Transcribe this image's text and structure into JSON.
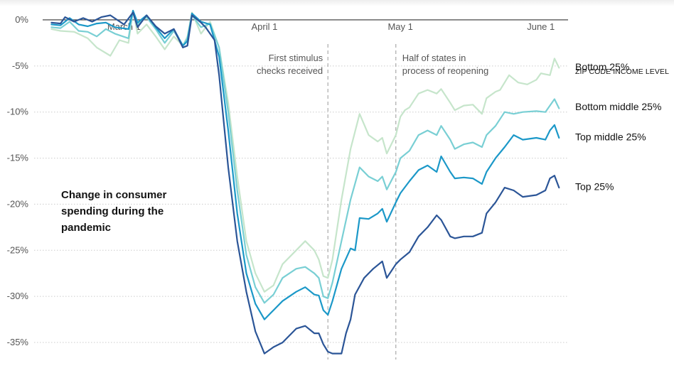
{
  "chart_data": {
    "type": "line",
    "title": "Change in consumer spending during the pandemic",
    "title_lines": [
      "Change in consumer",
      "spending during the",
      "pandemic"
    ],
    "x_ticks": [
      {
        "date": "2020-03-01",
        "label": "March 1"
      },
      {
        "date": "2020-04-01",
        "label": "April 1"
      },
      {
        "date": "2020-05-01",
        "label": "May 1"
      },
      {
        "date": "2020-06-01",
        "label": "June 1"
      }
    ],
    "y_ticks": [
      {
        "value": 0,
        "label": "0%"
      },
      {
        "value": -5,
        "label": "-5%"
      },
      {
        "value": -10,
        "label": "-10%"
      },
      {
        "value": -15,
        "label": "-15%"
      },
      {
        "value": -20,
        "label": "-20%"
      },
      {
        "value": -25,
        "label": "-25%"
      },
      {
        "value": -30,
        "label": "-30%"
      },
      {
        "value": -35,
        "label": "-35%"
      }
    ],
    "xlim": [
      "2020-02-13",
      "2020-06-07"
    ],
    "ylim": [
      -37,
      2
    ],
    "annotations": [
      {
        "date": "2020-04-15",
        "lines": [
          "First stimulus",
          "checks received"
        ],
        "side": "left"
      },
      {
        "date": "2020-04-30",
        "lines": [
          "Half of states in",
          "process of reopening"
        ],
        "side": "right"
      }
    ],
    "legend_title": "ZIP CODE INCOME LEVEL",
    "legend_position": "right",
    "series": [
      {
        "name": "Bottom 25%",
        "color": "#c6e5cb",
        "points": [
          [
            "2020-02-14",
            -1.0
          ],
          [
            "2020-02-16",
            -1.2
          ],
          [
            "2020-02-19",
            -1.3
          ],
          [
            "2020-02-22",
            -2.0
          ],
          [
            "2020-02-24",
            -3.0
          ],
          [
            "2020-02-27",
            -3.9
          ],
          [
            "2020-02-29",
            -2.2
          ],
          [
            "2020-03-02",
            -2.5
          ],
          [
            "2020-03-03",
            1.0
          ],
          [
            "2020-03-04",
            -1.5
          ],
          [
            "2020-03-06",
            -0.5
          ],
          [
            "2020-03-08",
            -1.8
          ],
          [
            "2020-03-10",
            -3.2
          ],
          [
            "2020-03-12",
            -1.8
          ],
          [
            "2020-03-14",
            -2.8
          ],
          [
            "2020-03-15",
            -1.8
          ],
          [
            "2020-03-16",
            0.8
          ],
          [
            "2020-03-18",
            -1.5
          ],
          [
            "2020-03-20",
            -0.2
          ],
          [
            "2020-03-22",
            -3.0
          ],
          [
            "2020-03-24",
            -9.0
          ],
          [
            "2020-03-26",
            -17.0
          ],
          [
            "2020-03-28",
            -24.0
          ],
          [
            "2020-03-30",
            -27.5
          ],
          [
            "2020-04-01",
            -29.5
          ],
          [
            "2020-04-03",
            -28.8
          ],
          [
            "2020-04-05",
            -26.5
          ],
          [
            "2020-04-08",
            -25.0
          ],
          [
            "2020-04-10",
            -24.0
          ],
          [
            "2020-04-12",
            -25.0
          ],
          [
            "2020-04-13",
            -26.0
          ],
          [
            "2020-04-14",
            -27.8
          ],
          [
            "2020-04-15",
            -28.0
          ],
          [
            "2020-04-16",
            -26.0
          ],
          [
            "2020-04-18",
            -19.5
          ],
          [
            "2020-04-20",
            -14.0
          ],
          [
            "2020-04-22",
            -10.2
          ],
          [
            "2020-04-24",
            -12.5
          ],
          [
            "2020-04-26",
            -13.2
          ],
          [
            "2020-04-27",
            -12.8
          ],
          [
            "2020-04-28",
            -14.5
          ],
          [
            "2020-04-30",
            -12.5
          ],
          [
            "2020-05-01",
            -10.5
          ],
          [
            "2020-05-02",
            -9.8
          ],
          [
            "2020-05-03",
            -9.5
          ],
          [
            "2020-05-05",
            -8.0
          ],
          [
            "2020-05-07",
            -7.6
          ],
          [
            "2020-05-09",
            -8.0
          ],
          [
            "2020-05-10",
            -7.5
          ],
          [
            "2020-05-12",
            -9.0
          ],
          [
            "2020-05-13",
            -9.8
          ],
          [
            "2020-05-15",
            -9.3
          ],
          [
            "2020-05-17",
            -9.2
          ],
          [
            "2020-05-19",
            -10.2
          ],
          [
            "2020-05-20",
            -8.5
          ],
          [
            "2020-05-22",
            -7.8
          ],
          [
            "2020-05-23",
            -7.6
          ],
          [
            "2020-05-25",
            -6.0
          ],
          [
            "2020-05-27",
            -6.8
          ],
          [
            "2020-05-29",
            -7.0
          ],
          [
            "2020-05-31",
            -6.5
          ],
          [
            "2020-06-01",
            -5.8
          ],
          [
            "2020-06-03",
            -6.0
          ],
          [
            "2020-06-04",
            -4.2
          ],
          [
            "2020-06-05",
            -5.2
          ]
        ]
      },
      {
        "name": "Bottom middle 25%",
        "color": "#79cfd4",
        "points": [
          [
            "2020-02-14",
            -0.8
          ],
          [
            "2020-02-16",
            -0.9
          ],
          [
            "2020-02-18",
            -0.2
          ],
          [
            "2020-02-20",
            -1.2
          ],
          [
            "2020-02-22",
            -1.3
          ],
          [
            "2020-02-24",
            -1.8
          ],
          [
            "2020-02-26",
            -1.0
          ],
          [
            "2020-02-28",
            -1.5
          ],
          [
            "2020-03-02",
            -2.0
          ],
          [
            "2020-03-03",
            1.0
          ],
          [
            "2020-03-04",
            -0.5
          ],
          [
            "2020-03-06",
            0.3
          ],
          [
            "2020-03-08",
            -1.0
          ],
          [
            "2020-03-10",
            -2.5
          ],
          [
            "2020-03-12",
            -1.2
          ],
          [
            "2020-03-14",
            -2.8
          ],
          [
            "2020-03-15",
            -2.0
          ],
          [
            "2020-03-16",
            0.5
          ],
          [
            "2020-03-18",
            -0.8
          ],
          [
            "2020-03-20",
            -0.4
          ],
          [
            "2020-03-22",
            -3.0
          ],
          [
            "2020-03-24",
            -10.0
          ],
          [
            "2020-03-26",
            -18.5
          ],
          [
            "2020-03-28",
            -25.5
          ],
          [
            "2020-03-30",
            -29.0
          ],
          [
            "2020-04-01",
            -30.7
          ],
          [
            "2020-04-03",
            -29.8
          ],
          [
            "2020-04-05",
            -28.0
          ],
          [
            "2020-04-08",
            -27.0
          ],
          [
            "2020-04-10",
            -26.8
          ],
          [
            "2020-04-12",
            -27.5
          ],
          [
            "2020-04-13",
            -28.0
          ],
          [
            "2020-04-14",
            -30.0
          ],
          [
            "2020-04-15",
            -30.2
          ],
          [
            "2020-04-16",
            -28.5
          ],
          [
            "2020-04-18",
            -24.0
          ],
          [
            "2020-04-20",
            -19.5
          ],
          [
            "2020-04-22",
            -16.0
          ],
          [
            "2020-04-24",
            -17.0
          ],
          [
            "2020-04-26",
            -17.5
          ],
          [
            "2020-04-27",
            -17.0
          ],
          [
            "2020-04-28",
            -18.4
          ],
          [
            "2020-04-30",
            -16.5
          ],
          [
            "2020-05-01",
            -15.0
          ],
          [
            "2020-05-03",
            -14.2
          ],
          [
            "2020-05-05",
            -12.5
          ],
          [
            "2020-05-07",
            -12.0
          ],
          [
            "2020-05-09",
            -12.5
          ],
          [
            "2020-05-10",
            -11.5
          ],
          [
            "2020-05-12",
            -13.0
          ],
          [
            "2020-05-13",
            -14.0
          ],
          [
            "2020-05-15",
            -13.5
          ],
          [
            "2020-05-17",
            -13.3
          ],
          [
            "2020-05-19",
            -13.8
          ],
          [
            "2020-05-20",
            -12.5
          ],
          [
            "2020-05-22",
            -11.5
          ],
          [
            "2020-05-24",
            -10.0
          ],
          [
            "2020-05-26",
            -10.2
          ],
          [
            "2020-05-28",
            -10.0
          ],
          [
            "2020-05-31",
            -9.9
          ],
          [
            "2020-06-02",
            -10.0
          ],
          [
            "2020-06-04",
            -8.6
          ],
          [
            "2020-06-05",
            -9.6
          ]
        ]
      },
      {
        "name": "Top middle 25%",
        "color": "#1b98c8",
        "points": [
          [
            "2020-02-14",
            -0.5
          ],
          [
            "2020-02-16",
            -0.6
          ],
          [
            "2020-02-18",
            0.2
          ],
          [
            "2020-02-20",
            -0.5
          ],
          [
            "2020-02-22",
            -0.7
          ],
          [
            "2020-02-24",
            -0.4
          ],
          [
            "2020-02-26",
            -0.3
          ],
          [
            "2020-02-28",
            -0.8
          ],
          [
            "2020-03-02",
            -1.0
          ],
          [
            "2020-03-03",
            1.0
          ],
          [
            "2020-03-04",
            -0.3
          ],
          [
            "2020-03-06",
            0.5
          ],
          [
            "2020-03-08",
            -0.8
          ],
          [
            "2020-03-10",
            -2.0
          ],
          [
            "2020-03-12",
            -1.0
          ],
          [
            "2020-03-14",
            -2.8
          ],
          [
            "2020-03-15",
            -2.3
          ],
          [
            "2020-03-16",
            0.7
          ],
          [
            "2020-03-18",
            -0.2
          ],
          [
            "2020-03-20",
            -0.5
          ],
          [
            "2020-03-22",
            -4.0
          ],
          [
            "2020-03-24",
            -12.0
          ],
          [
            "2020-03-26",
            -21.0
          ],
          [
            "2020-03-28",
            -27.5
          ],
          [
            "2020-03-30",
            -30.8
          ],
          [
            "2020-04-01",
            -32.5
          ],
          [
            "2020-04-03",
            -31.5
          ],
          [
            "2020-04-05",
            -30.5
          ],
          [
            "2020-04-08",
            -29.5
          ],
          [
            "2020-04-10",
            -29.0
          ],
          [
            "2020-04-12",
            -29.8
          ],
          [
            "2020-04-13",
            -29.9
          ],
          [
            "2020-04-14",
            -31.5
          ],
          [
            "2020-04-15",
            -32.0
          ],
          [
            "2020-04-16",
            -30.5
          ],
          [
            "2020-04-18",
            -27.0
          ],
          [
            "2020-04-20",
            -24.8
          ],
          [
            "2020-04-21",
            -25.0
          ],
          [
            "2020-04-22",
            -21.5
          ],
          [
            "2020-04-24",
            -21.6
          ],
          [
            "2020-04-26",
            -21.0
          ],
          [
            "2020-04-27",
            -20.5
          ],
          [
            "2020-04-28",
            -21.9
          ],
          [
            "2020-04-30",
            -19.8
          ],
          [
            "2020-05-01",
            -18.8
          ],
          [
            "2020-05-03",
            -17.5
          ],
          [
            "2020-05-05",
            -16.3
          ],
          [
            "2020-05-07",
            -15.8
          ],
          [
            "2020-05-09",
            -16.5
          ],
          [
            "2020-05-10",
            -14.8
          ],
          [
            "2020-05-12",
            -16.5
          ],
          [
            "2020-05-13",
            -17.2
          ],
          [
            "2020-05-15",
            -17.1
          ],
          [
            "2020-05-17",
            -17.2
          ],
          [
            "2020-05-19",
            -17.8
          ],
          [
            "2020-05-20",
            -16.5
          ],
          [
            "2020-05-22",
            -15.0
          ],
          [
            "2020-05-24",
            -13.8
          ],
          [
            "2020-05-26",
            -12.5
          ],
          [
            "2020-05-28",
            -13.0
          ],
          [
            "2020-05-31",
            -12.8
          ],
          [
            "2020-06-02",
            -13.0
          ],
          [
            "2020-06-03",
            -12.0
          ],
          [
            "2020-06-04",
            -11.4
          ],
          [
            "2020-06-05",
            -12.8
          ]
        ]
      },
      {
        "name": "Top 25%",
        "color": "#2b5597",
        "points": [
          [
            "2020-02-14",
            -0.3
          ],
          [
            "2020-02-16",
            -0.4
          ],
          [
            "2020-02-17",
            0.3
          ],
          [
            "2020-02-19",
            -0.2
          ],
          [
            "2020-02-21",
            0.2
          ],
          [
            "2020-02-23",
            -0.2
          ],
          [
            "2020-02-25",
            0.3
          ],
          [
            "2020-02-27",
            0.5
          ],
          [
            "2020-03-01",
            -0.5
          ],
          [
            "2020-03-03",
            0.8
          ],
          [
            "2020-03-04",
            -0.8
          ],
          [
            "2020-03-06",
            0.5
          ],
          [
            "2020-03-08",
            -0.7
          ],
          [
            "2020-03-10",
            -1.5
          ],
          [
            "2020-03-12",
            -1.0
          ],
          [
            "2020-03-14",
            -3.0
          ],
          [
            "2020-03-15",
            -2.8
          ],
          [
            "2020-03-16",
            0.5
          ],
          [
            "2020-03-18",
            -0.3
          ],
          [
            "2020-03-19",
            -0.8
          ],
          [
            "2020-03-21",
            -2.2
          ],
          [
            "2020-03-22",
            -6.0
          ],
          [
            "2020-03-24",
            -16.0
          ],
          [
            "2020-03-26",
            -24.0
          ],
          [
            "2020-03-28",
            -29.5
          ],
          [
            "2020-03-30",
            -33.8
          ],
          [
            "2020-04-01",
            -36.2
          ],
          [
            "2020-04-03",
            -35.5
          ],
          [
            "2020-04-05",
            -35.0
          ],
          [
            "2020-04-08",
            -33.5
          ],
          [
            "2020-04-10",
            -33.2
          ],
          [
            "2020-04-12",
            -34.0
          ],
          [
            "2020-04-13",
            -34.0
          ],
          [
            "2020-04-14",
            -35.2
          ],
          [
            "2020-04-15",
            -36.0
          ],
          [
            "2020-04-16",
            -36.2
          ],
          [
            "2020-04-18",
            -36.2
          ],
          [
            "2020-04-19",
            -34.0
          ],
          [
            "2020-04-20",
            -32.5
          ],
          [
            "2020-04-21",
            -29.8
          ],
          [
            "2020-04-23",
            -28.0
          ],
          [
            "2020-04-25",
            -27.0
          ],
          [
            "2020-04-27",
            -26.2
          ],
          [
            "2020-04-28",
            -28.0
          ],
          [
            "2020-04-30",
            -26.5
          ],
          [
            "2020-05-01",
            -26.0
          ],
          [
            "2020-05-03",
            -25.2
          ],
          [
            "2020-05-05",
            -23.5
          ],
          [
            "2020-05-07",
            -22.5
          ],
          [
            "2020-05-09",
            -21.2
          ],
          [
            "2020-05-10",
            -21.7
          ],
          [
            "2020-05-12",
            -23.5
          ],
          [
            "2020-05-13",
            -23.7
          ],
          [
            "2020-05-15",
            -23.5
          ],
          [
            "2020-05-17",
            -23.5
          ],
          [
            "2020-05-19",
            -23.1
          ],
          [
            "2020-05-20",
            -21.0
          ],
          [
            "2020-05-22",
            -19.8
          ],
          [
            "2020-05-24",
            -18.2
          ],
          [
            "2020-05-26",
            -18.5
          ],
          [
            "2020-05-28",
            -19.2
          ],
          [
            "2020-05-31",
            -19.0
          ],
          [
            "2020-06-02",
            -18.5
          ],
          [
            "2020-06-03",
            -17.2
          ],
          [
            "2020-06-04",
            -16.9
          ],
          [
            "2020-06-05",
            -18.2
          ]
        ]
      }
    ]
  }
}
